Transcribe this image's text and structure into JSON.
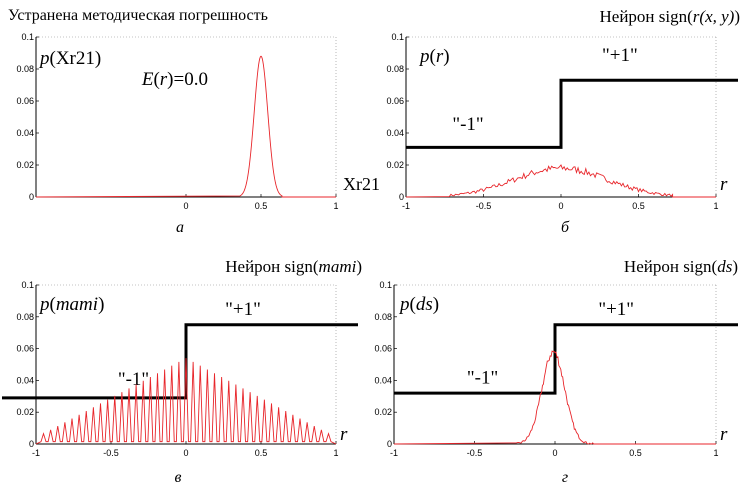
{
  "chart_data": [
    {
      "type": "line",
      "title": "Устранена методическая погрешность",
      "ylabel_prefix": "p(",
      "ylabel_var": "Xr21",
      "ylabel_var_italic": false,
      "ylabel_suffix": ")",
      "xlabel": "Xr21",
      "xlabel_italic": false,
      "panel_label": "а",
      "annotation": {
        "prefix": "E(",
        "var": "r",
        "suffix": ")=0.0",
        "x": 0.63,
        "y": 0.07
      },
      "xlim": [
        -1,
        1
      ],
      "ylim": [
        0,
        0.1
      ],
      "xticks": [
        0,
        0.5,
        1
      ],
      "xtick_labels": [
        "0",
        "0.5",
        "1"
      ],
      "yticks": [
        0,
        0.02,
        0.04,
        0.06,
        0.08,
        0.1
      ],
      "ytick_labels": [
        "0",
        "0.02",
        "0.04",
        "0.06",
        "0.08",
        "0.1"
      ],
      "series": [
        {
          "kind": "gaussian",
          "mu": 0.5,
          "sigma": 0.045,
          "amp": 0.088,
          "range": [
            0.36,
            0.64
          ],
          "color": "#e8262b"
        }
      ]
    },
    {
      "type": "line",
      "title_prefix": "Нейрон  sign(",
      "title_var": "r(x, y)",
      "title_suffix": ")",
      "ylabel_prefix": "p(",
      "ylabel_var": "r",
      "ylabel_var_italic": true,
      "ylabel_suffix": ")",
      "xlabel": "r",
      "xlabel_italic": true,
      "panel_label": "б",
      "step_labels": {
        "minus": "\"-1\"",
        "plus": "\"+1\""
      },
      "step_label_pos": {
        "minus": [
          -0.6,
          0.042
        ],
        "plus": [
          0.38,
          0.085
        ]
      },
      "step_levels": {
        "minus": 0.031,
        "plus": 0.073
      },
      "xlim": [
        -1,
        1
      ],
      "ylim": [
        0,
        0.1
      ],
      "xticks": [
        -1,
        -0.5,
        0,
        0.5,
        1
      ],
      "xtick_labels": [
        "-1",
        "-0.5",
        "0",
        "0.5",
        "1"
      ],
      "yticks": [
        0,
        0.02,
        0.04,
        0.06,
        0.08,
        0.1
      ],
      "ytick_labels": [
        "0",
        "0.02",
        "0.04",
        "0.06",
        "0.08",
        "0.1"
      ],
      "series": [
        {
          "kind": "noisy-gaussian",
          "mu": 0.0,
          "sigma": 0.3,
          "amp": 0.018,
          "range": [
            -0.72,
            0.72
          ],
          "noise": 0.0022,
          "step": 0.01,
          "color": "#e8262b"
        }
      ]
    },
    {
      "type": "line",
      "title_prefix": "Нейрон  sign(",
      "title_var": "mami",
      "title_suffix": ")",
      "ylabel_prefix": "p(",
      "ylabel_var": "mami",
      "ylabel_var_italic": true,
      "ylabel_suffix": ")",
      "xlabel": "r",
      "xlabel_italic": true,
      "panel_label": "в",
      "step_labels": {
        "minus": "\"-1\"",
        "plus": "\"+1\""
      },
      "step_label_pos": {
        "minus": [
          -0.35,
          0.037
        ],
        "plus": [
          0.38,
          0.081
        ]
      },
      "step_levels": {
        "minus": 0.029,
        "plus": 0.075
      },
      "xlim": [
        -1,
        1
      ],
      "ylim": [
        0,
        0.1
      ],
      "xticks": [
        -1,
        -0.5,
        0,
        0.5,
        1
      ],
      "xtick_labels": [
        "-1",
        "-0.5",
        "0",
        "0.5",
        "1"
      ],
      "yticks": [
        0,
        0.02,
        0.04,
        0.06,
        0.08,
        0.1
      ],
      "ytick_labels": [
        "0",
        "0.02",
        "0.04",
        "0.06",
        "0.08",
        "0.1"
      ],
      "series": [
        {
          "kind": "comb",
          "amp": 0.05,
          "n_teeth": 40,
          "range": [
            -0.95,
            0.95
          ],
          "color": "#e8262b"
        }
      ]
    },
    {
      "type": "line",
      "title_prefix": "Нейрон  sign(",
      "title_var": "ds",
      "title_suffix": ")",
      "ylabel_prefix": "p(",
      "ylabel_var": "ds",
      "ylabel_var_italic": true,
      "ylabel_suffix": ")",
      "xlabel": "r",
      "xlabel_italic": true,
      "panel_label": "г",
      "step_labels": {
        "minus": "\"-1\"",
        "plus": "\"+1\""
      },
      "step_label_pos": {
        "minus": [
          -0.45,
          0.038
        ],
        "plus": [
          0.38,
          0.081
        ]
      },
      "step_levels": {
        "minus": 0.032,
        "plus": 0.075
      },
      "xlim": [
        -1,
        1
      ],
      "ylim": [
        0,
        0.1
      ],
      "xticks": [
        -1,
        -0.5,
        0,
        0.5,
        1
      ],
      "xtick_labels": [
        "-1",
        "-0.5",
        "0",
        "0.5",
        "1"
      ],
      "yticks": [
        0,
        0.02,
        0.04,
        0.06,
        0.08,
        0.1
      ],
      "ytick_labels": [
        "0",
        "0.02",
        "0.04",
        "0.06",
        "0.08",
        "0.1"
      ],
      "series": [
        {
          "kind": "noisy-gaussian",
          "mu": -0.01,
          "sigma": 0.07,
          "amp": 0.058,
          "range": [
            -0.24,
            0.24
          ],
          "noise": 0.0025,
          "step": 0.006,
          "color": "#e8262b"
        }
      ]
    }
  ]
}
